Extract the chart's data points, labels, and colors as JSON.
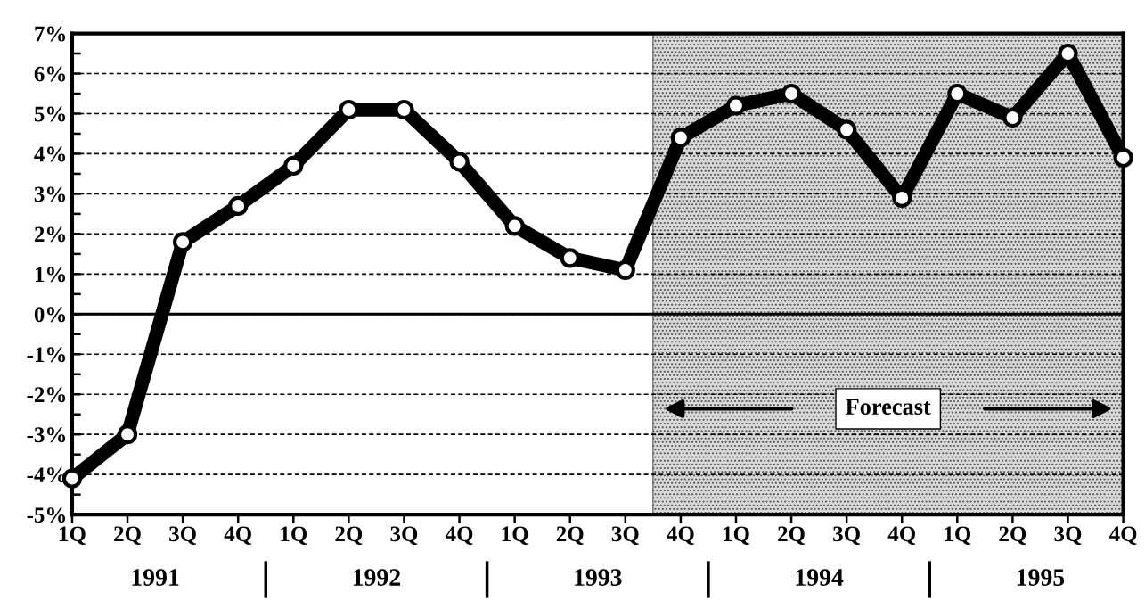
{
  "chart_data": {
    "type": "line",
    "categories": [
      "1Q",
      "2Q",
      "3Q",
      "4Q",
      "1Q",
      "2Q",
      "3Q",
      "4Q",
      "1Q",
      "2Q",
      "3Q",
      "4Q",
      "1Q",
      "2Q",
      "3Q",
      "4Q",
      "1Q",
      "2Q",
      "3Q",
      "4Q"
    ],
    "series": [
      {
        "color": "#000000",
        "values": [
          -4.1,
          -3.0,
          1.8,
          2.7,
          3.7,
          5.1,
          5.1,
          3.8,
          2.2,
          1.4,
          1.1,
          4.4,
          5.2,
          5.5,
          4.6,
          2.9,
          5.5,
          4.9,
          6.5,
          3.9
        ]
      }
    ],
    "ylim": [
      -5,
      7
    ],
    "yticks": [
      {
        "value": -5,
        "label": "-5%"
      },
      {
        "value": -4,
        "label": "-4%"
      },
      {
        "value": -3,
        "label": "-3%"
      },
      {
        "value": -2,
        "label": "-2%"
      },
      {
        "value": -1,
        "label": "-1%"
      },
      {
        "value": 0,
        "label": "0%"
      },
      {
        "value": 1,
        "label": "1%"
      },
      {
        "value": 2,
        "label": "2%"
      },
      {
        "value": 3,
        "label": "3%"
      },
      {
        "value": 4,
        "label": "4%"
      },
      {
        "value": 5,
        "label": "5%"
      },
      {
        "value": 6,
        "label": "6%"
      },
      {
        "value": 7,
        "label": "7%"
      }
    ],
    "annotations": [
      "1991",
      "1992",
      "1993",
      "1994",
      "1995",
      "Forecast"
    ],
    "ref_lines": [
      {
        "axis": "y",
        "value": 0,
        "color": "#000000",
        "line_style": "solid"
      }
    ],
    "grid": "y",
    "marker": "circle",
    "line_style": "solid",
    "legend": false
  }
}
